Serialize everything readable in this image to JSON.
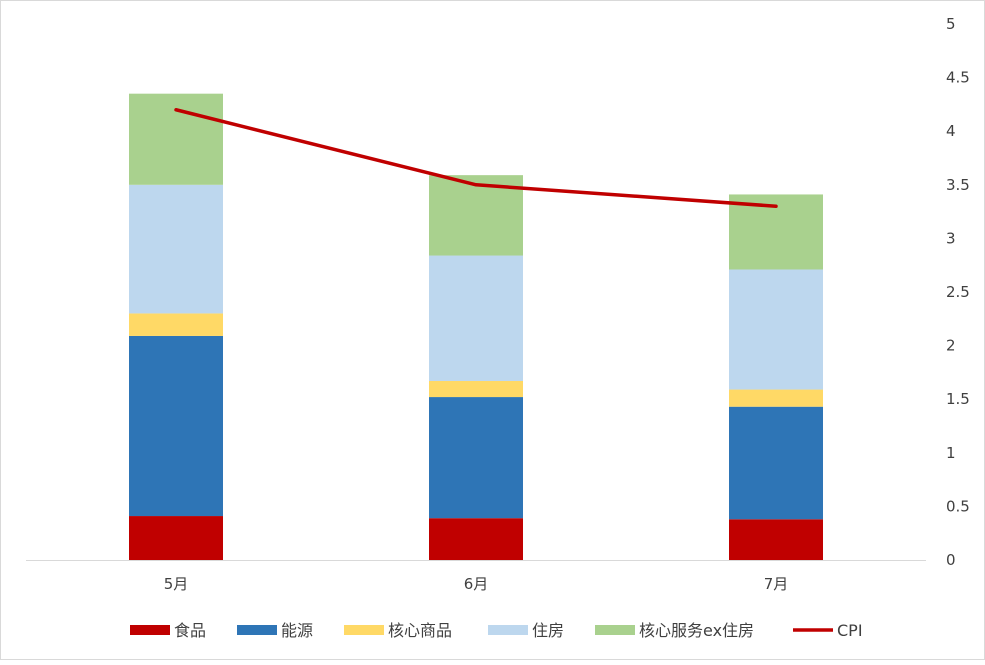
{
  "chart_data": {
    "type": "bar",
    "stacked": true,
    "categories": [
      "5月",
      "6月",
      "7月"
    ],
    "series": [
      {
        "name": "食品",
        "type": "bar",
        "color": "#c00000",
        "values": [
          0.41,
          0.39,
          0.38
        ]
      },
      {
        "name": "能源",
        "type": "bar",
        "color": "#2e75b6",
        "values": [
          1.68,
          1.13,
          1.05
        ]
      },
      {
        "name": "核心商品",
        "type": "bar",
        "color": "#ffd966",
        "values": [
          0.21,
          0.15,
          0.16
        ]
      },
      {
        "name": "住房",
        "type": "bar",
        "color": "#bdd7ee",
        "values": [
          1.2,
          1.17,
          1.12
        ]
      },
      {
        "name": "核心服务ex住房",
        "type": "bar",
        "color": "#a9d18e",
        "values": [
          0.85,
          0.75,
          0.7
        ]
      },
      {
        "name": "CPI",
        "type": "line",
        "color": "#c00000",
        "values": [
          4.2,
          3.5,
          3.3
        ]
      }
    ],
    "y_axis": {
      "position": "right",
      "min": 0,
      "max": 5,
      "step": 0.5,
      "ticks": [
        "0",
        "0.5",
        "1",
        "1.5",
        "2",
        "2.5",
        "3",
        "3.5",
        "4",
        "4.5",
        "5"
      ]
    },
    "grid": false,
    "legend": "bottom"
  }
}
